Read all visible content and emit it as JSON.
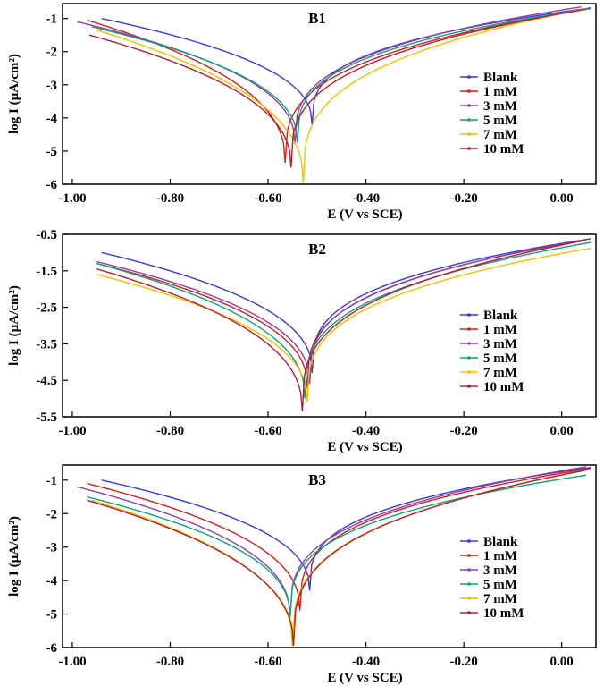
{
  "chart_data": [
    {
      "type": "line",
      "title": "B1",
      "xlabel": "E (V vs SCE)",
      "ylabel": "log I (µA/cm²)",
      "xlim": [
        -1.02,
        0.07
      ],
      "ylim": [
        -6,
        -0.55
      ],
      "xticks": [
        -1.0,
        -0.8,
        -0.6,
        -0.4,
        -0.2,
        0.0
      ],
      "xtick_labels": [
        "-1.00",
        "-0.80",
        "-0.60",
        "-0.40",
        "-0.20",
        "0.00"
      ],
      "yticks": [
        -1,
        -2,
        -3,
        -4,
        -5,
        -6
      ],
      "ytick_labels": [
        "-1",
        "-2",
        "-3",
        "-4",
        "-5",
        "-6"
      ],
      "legend_position": "right",
      "series": [
        {
          "name": "Blank",
          "color": "#3a3ad8",
          "ecorr": -0.51,
          "icorr": -4.2,
          "e_start": -0.94,
          "i_start": -1.0,
          "e_end": 0.06,
          "i_end": -0.68
        },
        {
          "name": "1 mM",
          "color": "#d02020",
          "ecorr": -0.565,
          "icorr": -5.35,
          "e_start": -0.97,
          "i_start": -1.05,
          "e_end": 0.05,
          "i_end": -0.72
        },
        {
          "name": "3 mM",
          "color": "#9040a0",
          "ecorr": -0.545,
          "icorr": -4.8,
          "e_start": -0.99,
          "i_start": -1.1,
          "e_end": 0.04,
          "i_end": -0.65
        },
        {
          "name": "5 mM",
          "color": "#10a080",
          "ecorr": -0.54,
          "icorr": -4.75,
          "e_start": -0.96,
          "i_start": -1.25,
          "e_end": 0.06,
          "i_end": -0.7
        },
        {
          "name": "7 mM",
          "color": "#f0c000",
          "ecorr": -0.528,
          "icorr": -5.95,
          "e_start": -0.95,
          "i_start": -1.35,
          "e_end": 0.05,
          "i_end": -0.7
        },
        {
          "name": "10 mM",
          "color": "#b02030",
          "ecorr": -0.553,
          "icorr": -5.5,
          "e_start": -0.965,
          "i_start": -1.5,
          "e_end": 0.05,
          "i_end": -0.72
        }
      ]
    },
    {
      "type": "line",
      "title": "B2",
      "xlabel": "E (V vs SCE)",
      "ylabel": "log I (µA/cm²)",
      "xlim": [
        -1.02,
        0.07
      ],
      "ylim": [
        -5.5,
        -0.5
      ],
      "xticks": [
        -1.0,
        -0.8,
        -0.6,
        -0.4,
        -0.2,
        0.0
      ],
      "xtick_labels": [
        "-1.00",
        "-0.80",
        "-0.60",
        "-0.40",
        "-0.20",
        "0.00"
      ],
      "yticks": [
        -0.5,
        -1.5,
        -2.5,
        -3.5,
        -4.5,
        -5.5
      ],
      "ytick_labels": [
        "-0.5",
        "-1.5",
        "-2.5",
        "-3.5",
        "-4.5",
        "-5.5"
      ],
      "legend_position": "right",
      "series": [
        {
          "name": "Blank",
          "color": "#3a3ad8",
          "ecorr": -0.51,
          "icorr": -4.3,
          "e_start": -0.94,
          "i_start": -1.0,
          "e_end": 0.06,
          "i_end": -0.62
        },
        {
          "name": "1 mM",
          "color": "#d02020",
          "ecorr": -0.52,
          "icorr": -4.7,
          "e_start": -0.95,
          "i_start": -1.3,
          "e_end": 0.05,
          "i_end": -0.65
        },
        {
          "name": "3 mM",
          "color": "#9040a0",
          "ecorr": -0.515,
          "icorr": -4.6,
          "e_start": -0.95,
          "i_start": -1.25,
          "e_end": 0.05,
          "i_end": -0.66
        },
        {
          "name": "5 mM",
          "color": "#10a080",
          "ecorr": -0.525,
          "icorr": -5.0,
          "e_start": -0.95,
          "i_start": -1.3,
          "e_end": 0.06,
          "i_end": -0.72
        },
        {
          "name": "7 mM",
          "color": "#f0c000",
          "ecorr": -0.52,
          "icorr": -5.1,
          "e_start": -0.95,
          "i_start": -1.6,
          "e_end": 0.06,
          "i_end": -0.88
        },
        {
          "name": "10 mM",
          "color": "#b02030",
          "ecorr": -0.53,
          "icorr": -5.35,
          "e_start": -0.95,
          "i_start": -1.45,
          "e_end": 0.05,
          "i_end": -0.66
        }
      ]
    },
    {
      "type": "line",
      "title": "B3",
      "xlabel": "E (V vs SCE)",
      "ylabel": "log I (µA/cm²)",
      "xlim": [
        -1.02,
        0.07
      ],
      "ylim": [
        -6,
        -0.55
      ],
      "xticks": [
        -1.0,
        -0.8,
        -0.6,
        -0.4,
        -0.2,
        0.0
      ],
      "xtick_labels": [
        "-1.00",
        "-0.80",
        "-0.60",
        "-0.40",
        "-0.20",
        "0.00"
      ],
      "yticks": [
        -1,
        -2,
        -3,
        -4,
        -5,
        -6
      ],
      "ytick_labels": [
        "-1",
        "-2",
        "-3",
        "-4",
        "-5",
        "-6"
      ],
      "legend_position": "right",
      "series": [
        {
          "name": "Blank",
          "color": "#3a3ad8",
          "ecorr": -0.515,
          "icorr": -4.3,
          "e_start": -0.94,
          "i_start": -1.0,
          "e_end": 0.06,
          "i_end": -0.62
        },
        {
          "name": "1 mM",
          "color": "#d02020",
          "ecorr": -0.535,
          "icorr": -4.9,
          "e_start": -0.97,
          "i_start": -1.1,
          "e_end": 0.06,
          "i_end": -0.65
        },
        {
          "name": "3 mM",
          "color": "#9040a0",
          "ecorr": -0.555,
          "icorr": -5.1,
          "e_start": -0.99,
          "i_start": -1.2,
          "e_end": 0.05,
          "i_end": -0.6
        },
        {
          "name": "5 mM",
          "color": "#10a080",
          "ecorr": -0.555,
          "icorr": -5.1,
          "e_start": -0.97,
          "i_start": -1.5,
          "e_end": 0.05,
          "i_end": -0.85
        },
        {
          "name": "7 mM",
          "color": "#f0c000",
          "ecorr": -0.55,
          "icorr": -5.95,
          "e_start": -0.96,
          "i_start": -1.6,
          "e_end": 0.05,
          "i_end": -0.7
        },
        {
          "name": "10 mM",
          "color": "#b02030",
          "ecorr": -0.548,
          "icorr": -5.95,
          "e_start": -0.97,
          "i_start": -1.6,
          "e_end": 0.05,
          "i_end": -0.7
        }
      ]
    }
  ]
}
